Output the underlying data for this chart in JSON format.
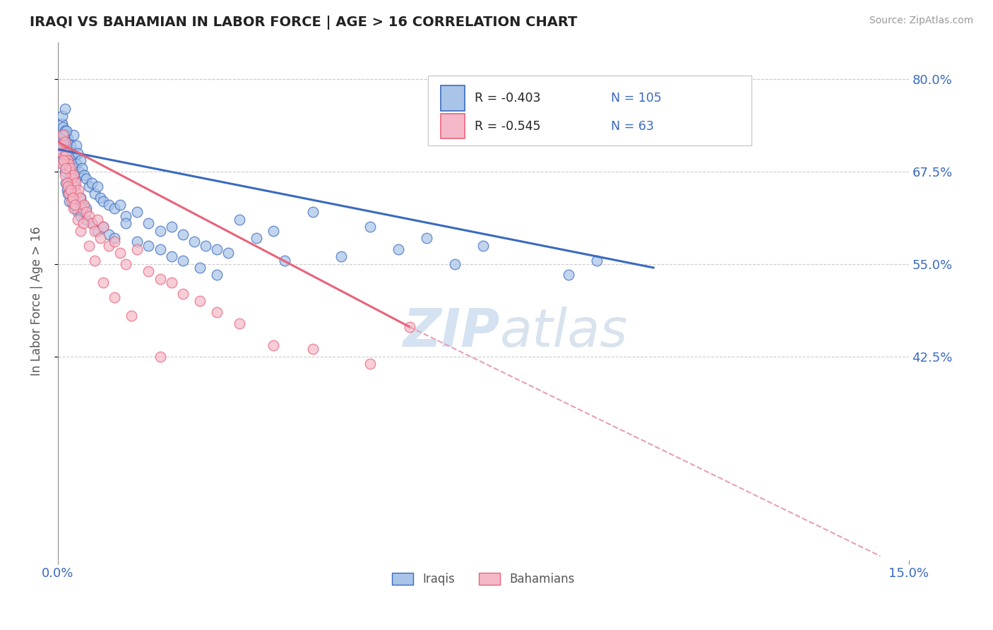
{
  "title": "IRAQI VS BAHAMIAN IN LABOR FORCE | AGE > 16 CORRELATION CHART",
  "source": "Source: ZipAtlas.com",
  "ylabel": "In Labor Force | Age > 16",
  "xlim": [
    0.0,
    15.0
  ],
  "ylim": [
    15.0,
    85.0
  ],
  "yticks": [
    42.5,
    55.0,
    67.5,
    80.0
  ],
  "xtick_labels": [
    "0.0%",
    "15.0%"
  ],
  "ytick_labels": [
    "42.5%",
    "55.0%",
    "67.5%",
    "80.0%"
  ],
  "legend_R1": "-0.403",
  "legend_N1": "105",
  "legend_R2": "-0.545",
  "legend_N2": "63",
  "iraqi_color": "#a8c4e8",
  "bahamian_color": "#f5b8c8",
  "trendline_iraqi_color": "#3a6abf",
  "trendline_bahamian_color": "#e8637a",
  "trendline_ext_color": "#e8a0b0",
  "watermark_color": "#d0dff0",
  "iraqi_trendline_x0": 0.0,
  "iraqi_trendline_y0": 70.5,
  "iraqi_trendline_x1": 10.5,
  "iraqi_trendline_y1": 54.5,
  "bahamian_trendline_x0": 0.0,
  "bahamian_trendline_y0": 71.5,
  "bahamian_trendline_x1": 6.2,
  "bahamian_trendline_y1": 46.5,
  "bahamian_dash_x0": 6.2,
  "bahamian_dash_y0": 46.5,
  "bahamian_dash_x1": 14.5,
  "bahamian_dash_y1": 15.5,
  "iraqis_x": [
    0.05,
    0.06,
    0.07,
    0.08,
    0.09,
    0.1,
    0.11,
    0.12,
    0.13,
    0.14,
    0.15,
    0.16,
    0.17,
    0.18,
    0.19,
    0.2,
    0.21,
    0.22,
    0.23,
    0.24,
    0.25,
    0.26,
    0.27,
    0.28,
    0.29,
    0.3,
    0.31,
    0.32,
    0.33,
    0.35,
    0.37,
    0.4,
    0.43,
    0.46,
    0.5,
    0.55,
    0.6,
    0.65,
    0.7,
    0.75,
    0.8,
    0.9,
    1.0,
    1.1,
    1.2,
    1.4,
    1.6,
    1.8,
    2.0,
    2.2,
    2.4,
    2.6,
    2.8,
    3.0,
    3.5,
    4.0,
    5.0,
    6.0,
    7.0,
    9.0,
    0.08,
    0.1,
    0.12,
    0.14,
    0.16,
    0.18,
    0.2,
    0.22,
    0.25,
    0.28,
    0.3,
    0.35,
    0.4,
    0.45,
    0.5,
    0.6,
    0.7,
    0.8,
    0.9,
    1.0,
    1.2,
    1.4,
    1.6,
    1.8,
    2.0,
    2.2,
    2.5,
    2.8,
    3.2,
    3.8,
    4.5,
    5.5,
    6.5,
    7.5,
    9.5,
    0.09,
    0.11,
    0.13,
    0.15,
    0.17,
    0.2,
    0.25,
    0.3,
    0.4,
    0.5
  ],
  "iraqis_y": [
    70.5,
    72.0,
    74.0,
    75.0,
    73.5,
    71.0,
    69.5,
    76.0,
    73.0,
    72.5,
    71.5,
    70.0,
    68.5,
    72.0,
    69.0,
    70.5,
    68.0,
    71.0,
    67.5,
    69.5,
    70.0,
    68.5,
    67.0,
    72.5,
    68.0,
    69.5,
    66.5,
    71.0,
    68.5,
    70.0,
    67.5,
    69.0,
    68.0,
    67.0,
    66.5,
    65.5,
    66.0,
    64.5,
    65.5,
    64.0,
    63.5,
    63.0,
    62.5,
    63.0,
    61.5,
    62.0,
    60.5,
    59.5,
    60.0,
    59.0,
    58.0,
    57.5,
    57.0,
    56.5,
    58.5,
    55.5,
    56.0,
    57.0,
    55.0,
    53.5,
    69.0,
    68.5,
    67.5,
    66.0,
    65.0,
    64.5,
    63.5,
    65.5,
    64.0,
    63.0,
    62.5,
    62.0,
    61.5,
    63.0,
    61.0,
    60.5,
    59.5,
    60.0,
    59.0,
    58.5,
    60.5,
    58.0,
    57.5,
    57.0,
    56.0,
    55.5,
    54.5,
    53.5,
    61.0,
    59.5,
    62.0,
    60.0,
    58.5,
    57.5,
    55.5,
    71.5,
    72.5,
    70.0,
    73.0,
    69.0,
    68.0,
    66.5,
    65.5,
    64.0,
    62.5
  ],
  "bahamians_x": [
    0.05,
    0.07,
    0.09,
    0.11,
    0.13,
    0.15,
    0.17,
    0.19,
    0.21,
    0.23,
    0.25,
    0.27,
    0.29,
    0.31,
    0.33,
    0.36,
    0.39,
    0.42,
    0.46,
    0.5,
    0.55,
    0.6,
    0.65,
    0.7,
    0.75,
    0.8,
    0.9,
    1.0,
    1.1,
    1.2,
    1.4,
    1.6,
    1.8,
    2.0,
    2.2,
    2.5,
    2.8,
    3.2,
    3.8,
    4.5,
    5.5,
    6.2,
    0.08,
    0.1,
    0.12,
    0.14,
    0.16,
    0.18,
    0.2,
    0.22,
    0.24,
    0.26,
    0.28,
    0.3,
    0.35,
    0.4,
    0.45,
    0.55,
    0.65,
    0.8,
    1.0,
    1.3,
    1.8
  ],
  "bahamians_y": [
    71.0,
    70.0,
    72.5,
    69.5,
    71.5,
    70.0,
    69.0,
    68.5,
    67.5,
    68.0,
    66.5,
    67.0,
    65.5,
    66.0,
    64.5,
    65.0,
    64.0,
    62.5,
    63.0,
    62.0,
    61.5,
    60.5,
    59.5,
    61.0,
    58.5,
    60.0,
    57.5,
    58.0,
    56.5,
    55.0,
    57.0,
    54.0,
    53.0,
    52.5,
    51.0,
    50.0,
    48.5,
    47.0,
    44.0,
    43.5,
    41.5,
    46.5,
    68.5,
    69.0,
    67.0,
    68.0,
    66.0,
    65.5,
    64.5,
    65.0,
    63.5,
    64.0,
    62.5,
    63.0,
    61.0,
    59.5,
    60.5,
    57.5,
    55.5,
    52.5,
    50.5,
    48.0,
    42.5
  ]
}
